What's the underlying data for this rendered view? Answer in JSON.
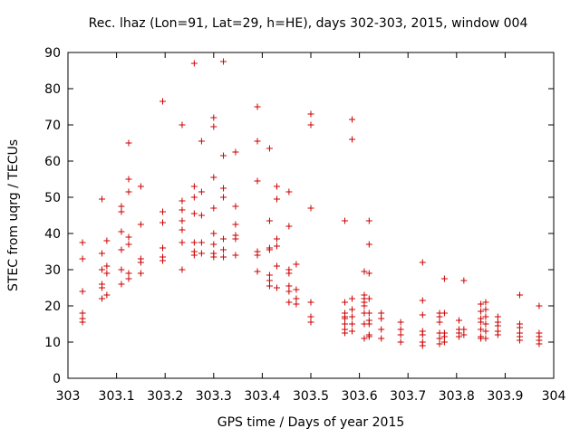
{
  "chart_data": {
    "type": "scatter",
    "title": "Rec. lhaz (Lon=91, Lat=29, h=HE), days 302-303, 2015, window 004",
    "xlabel": "GPS time / Days of year 2015",
    "ylabel": "STEC from uqrg / TECUs",
    "xlim": [
      303,
      304
    ],
    "ylim": [
      0,
      90
    ],
    "x_ticks": [
      "303",
      "303.1",
      "303.2",
      "303.3",
      "303.4",
      "303.5",
      "303.6",
      "303.7",
      "303.8",
      "303.9",
      "304"
    ],
    "y_ticks": [
      "0",
      "10",
      "20",
      "30",
      "40",
      "50",
      "60",
      "70",
      "80",
      "90"
    ],
    "x_tick_values": [
      303,
      303.1,
      303.2,
      303.3,
      303.4,
      303.5,
      303.6,
      303.7,
      303.8,
      303.9,
      304
    ],
    "y_tick_values": [
      0,
      10,
      20,
      30,
      40,
      50,
      60,
      70,
      80,
      90
    ],
    "grid": false,
    "marker": "plus",
    "marker_color": "#cc0000",
    "series": [
      {
        "points": [
          [
            303.03,
            37.5
          ],
          [
            303.03,
            33.0
          ],
          [
            303.03,
            24.0
          ],
          [
            303.03,
            18.0
          ],
          [
            303.03,
            16.5
          ],
          [
            303.03,
            15.5
          ],
          [
            303.07,
            49.5
          ],
          [
            303.07,
            34.5
          ],
          [
            303.07,
            30.0
          ],
          [
            303.07,
            26.0
          ],
          [
            303.07,
            25.0
          ],
          [
            303.07,
            22.0
          ],
          [
            303.08,
            38.0
          ],
          [
            303.08,
            31.0
          ],
          [
            303.08,
            29.0
          ],
          [
            303.08,
            23.0
          ],
          [
            303.11,
            47.5
          ],
          [
            303.11,
            46.0
          ],
          [
            303.11,
            40.5
          ],
          [
            303.11,
            35.5
          ],
          [
            303.11,
            30.0
          ],
          [
            303.11,
            26.0
          ],
          [
            303.125,
            65.0
          ],
          [
            303.125,
            55.0
          ],
          [
            303.125,
            51.5
          ],
          [
            303.125,
            39.0
          ],
          [
            303.125,
            37.0
          ],
          [
            303.125,
            29.0
          ],
          [
            303.125,
            27.5
          ],
          [
            303.15,
            53.0
          ],
          [
            303.15,
            42.5
          ],
          [
            303.15,
            33.0
          ],
          [
            303.15,
            32.0
          ],
          [
            303.15,
            29.0
          ],
          [
            303.195,
            76.5
          ],
          [
            303.195,
            46.0
          ],
          [
            303.195,
            43.0
          ],
          [
            303.195,
            36.0
          ],
          [
            303.195,
            33.5
          ],
          [
            303.195,
            32.5
          ],
          [
            303.235,
            70.0
          ],
          [
            303.235,
            49.0
          ],
          [
            303.235,
            46.5
          ],
          [
            303.235,
            43.5
          ],
          [
            303.235,
            41.0
          ],
          [
            303.235,
            37.5
          ],
          [
            303.235,
            30.0
          ],
          [
            303.26,
            87.0
          ],
          [
            303.26,
            53.0
          ],
          [
            303.26,
            50.0
          ],
          [
            303.26,
            45.5
          ],
          [
            303.26,
            37.5
          ],
          [
            303.26,
            35.0
          ],
          [
            303.26,
            34.0
          ],
          [
            303.275,
            65.5
          ],
          [
            303.275,
            51.5
          ],
          [
            303.275,
            45.0
          ],
          [
            303.275,
            37.5
          ],
          [
            303.275,
            34.5
          ],
          [
            303.3,
            72.0
          ],
          [
            303.3,
            69.5
          ],
          [
            303.3,
            55.5
          ],
          [
            303.3,
            47.0
          ],
          [
            303.3,
            40.0
          ],
          [
            303.3,
            37.0
          ],
          [
            303.3,
            34.5
          ],
          [
            303.3,
            33.5
          ],
          [
            303.32,
            87.5
          ],
          [
            303.32,
            61.5
          ],
          [
            303.32,
            52.5
          ],
          [
            303.32,
            50.0
          ],
          [
            303.32,
            38.5
          ],
          [
            303.32,
            35.5
          ],
          [
            303.32,
            33.5
          ],
          [
            303.345,
            62.5
          ],
          [
            303.345,
            47.5
          ],
          [
            303.345,
            42.5
          ],
          [
            303.345,
            39.5
          ],
          [
            303.345,
            38.5
          ],
          [
            303.345,
            34.0
          ],
          [
            303.39,
            75.0
          ],
          [
            303.39,
            65.5
          ],
          [
            303.39,
            54.5
          ],
          [
            303.39,
            35.0
          ],
          [
            303.39,
            34.0
          ],
          [
            303.39,
            29.5
          ],
          [
            303.415,
            63.5
          ],
          [
            303.415,
            43.5
          ],
          [
            303.415,
            36.0
          ],
          [
            303.415,
            35.5
          ],
          [
            303.415,
            28.5
          ],
          [
            303.415,
            27.0
          ],
          [
            303.415,
            25.5
          ],
          [
            303.43,
            53.0
          ],
          [
            303.43,
            49.5
          ],
          [
            303.43,
            38.5
          ],
          [
            303.43,
            36.5
          ],
          [
            303.43,
            31.0
          ],
          [
            303.43,
            25.0
          ],
          [
            303.455,
            51.5
          ],
          [
            303.455,
            42.0
          ],
          [
            303.455,
            30.0
          ],
          [
            303.455,
            29.0
          ],
          [
            303.455,
            25.5
          ],
          [
            303.455,
            24.0
          ],
          [
            303.455,
            21.0
          ],
          [
            303.47,
            31.5
          ],
          [
            303.47,
            24.5
          ],
          [
            303.47,
            22.0
          ],
          [
            303.47,
            20.5
          ],
          [
            303.5,
            73.0
          ],
          [
            303.5,
            70.0
          ],
          [
            303.5,
            47.0
          ],
          [
            303.5,
            21.0
          ],
          [
            303.5,
            17.0
          ],
          [
            303.5,
            15.5
          ],
          [
            303.57,
            43.5
          ],
          [
            303.57,
            21.0
          ],
          [
            303.57,
            18.0
          ],
          [
            303.57,
            17.0
          ],
          [
            303.57,
            16.5
          ],
          [
            303.57,
            15.0
          ],
          [
            303.57,
            13.5
          ],
          [
            303.57,
            12.5
          ],
          [
            303.585,
            71.5
          ],
          [
            303.585,
            66.0
          ],
          [
            303.585,
            22.0
          ],
          [
            303.585,
            19.0
          ],
          [
            303.585,
            17.0
          ],
          [
            303.585,
            15.0
          ],
          [
            303.585,
            13.0
          ],
          [
            303.61,
            29.5
          ],
          [
            303.61,
            23.0
          ],
          [
            303.61,
            22.0
          ],
          [
            303.61,
            21.0
          ],
          [
            303.61,
            20.0
          ],
          [
            303.61,
            18.0
          ],
          [
            303.61,
            15.0
          ],
          [
            303.61,
            11.0
          ],
          [
            303.62,
            43.5
          ],
          [
            303.62,
            37.0
          ],
          [
            303.62,
            29.0
          ],
          [
            303.62,
            22.0
          ],
          [
            303.62,
            18.0
          ],
          [
            303.62,
            16.0
          ],
          [
            303.62,
            15.0
          ],
          [
            303.62,
            12.0
          ],
          [
            303.62,
            11.5
          ],
          [
            303.645,
            18.0
          ],
          [
            303.645,
            16.5
          ],
          [
            303.645,
            13.5
          ],
          [
            303.645,
            11.0
          ],
          [
            303.685,
            15.5
          ],
          [
            303.685,
            13.5
          ],
          [
            303.685,
            12.0
          ],
          [
            303.685,
            10.0
          ],
          [
            303.73,
            32.0
          ],
          [
            303.73,
            21.5
          ],
          [
            303.73,
            17.5
          ],
          [
            303.73,
            13.0
          ],
          [
            303.73,
            12.0
          ],
          [
            303.73,
            10.0
          ],
          [
            303.73,
            9.0
          ],
          [
            303.765,
            18.0
          ],
          [
            303.765,
            17.0
          ],
          [
            303.765,
            15.5
          ],
          [
            303.765,
            12.5
          ],
          [
            303.765,
            11.0
          ],
          [
            303.765,
            9.5
          ],
          [
            303.775,
            27.5
          ],
          [
            303.775,
            18.0
          ],
          [
            303.775,
            12.5
          ],
          [
            303.775,
            11.5
          ],
          [
            303.775,
            10.0
          ],
          [
            303.805,
            16.0
          ],
          [
            303.805,
            13.5
          ],
          [
            303.805,
            12.5
          ],
          [
            303.805,
            11.5
          ],
          [
            303.815,
            27.0
          ],
          [
            303.815,
            13.5
          ],
          [
            303.815,
            12.0
          ],
          [
            303.85,
            20.5
          ],
          [
            303.85,
            18.5
          ],
          [
            303.85,
            16.5
          ],
          [
            303.85,
            15.5
          ],
          [
            303.85,
            13.5
          ],
          [
            303.85,
            11.5
          ],
          [
            303.85,
            11.0
          ],
          [
            303.86,
            21.0
          ],
          [
            303.86,
            19.0
          ],
          [
            303.86,
            17.0
          ],
          [
            303.86,
            15.0
          ],
          [
            303.86,
            13.0
          ],
          [
            303.86,
            11.0
          ],
          [
            303.885,
            17.0
          ],
          [
            303.885,
            15.5
          ],
          [
            303.885,
            14.5
          ],
          [
            303.885,
            13.0
          ],
          [
            303.885,
            12.0
          ],
          [
            303.93,
            23.0
          ],
          [
            303.93,
            15.0
          ],
          [
            303.93,
            14.0
          ],
          [
            303.93,
            12.5
          ],
          [
            303.93,
            11.5
          ],
          [
            303.93,
            10.5
          ],
          [
            303.97,
            20.0
          ],
          [
            303.97,
            12.5
          ],
          [
            303.97,
            11.5
          ],
          [
            303.97,
            10.5
          ],
          [
            303.97,
            9.5
          ]
        ]
      }
    ]
  }
}
